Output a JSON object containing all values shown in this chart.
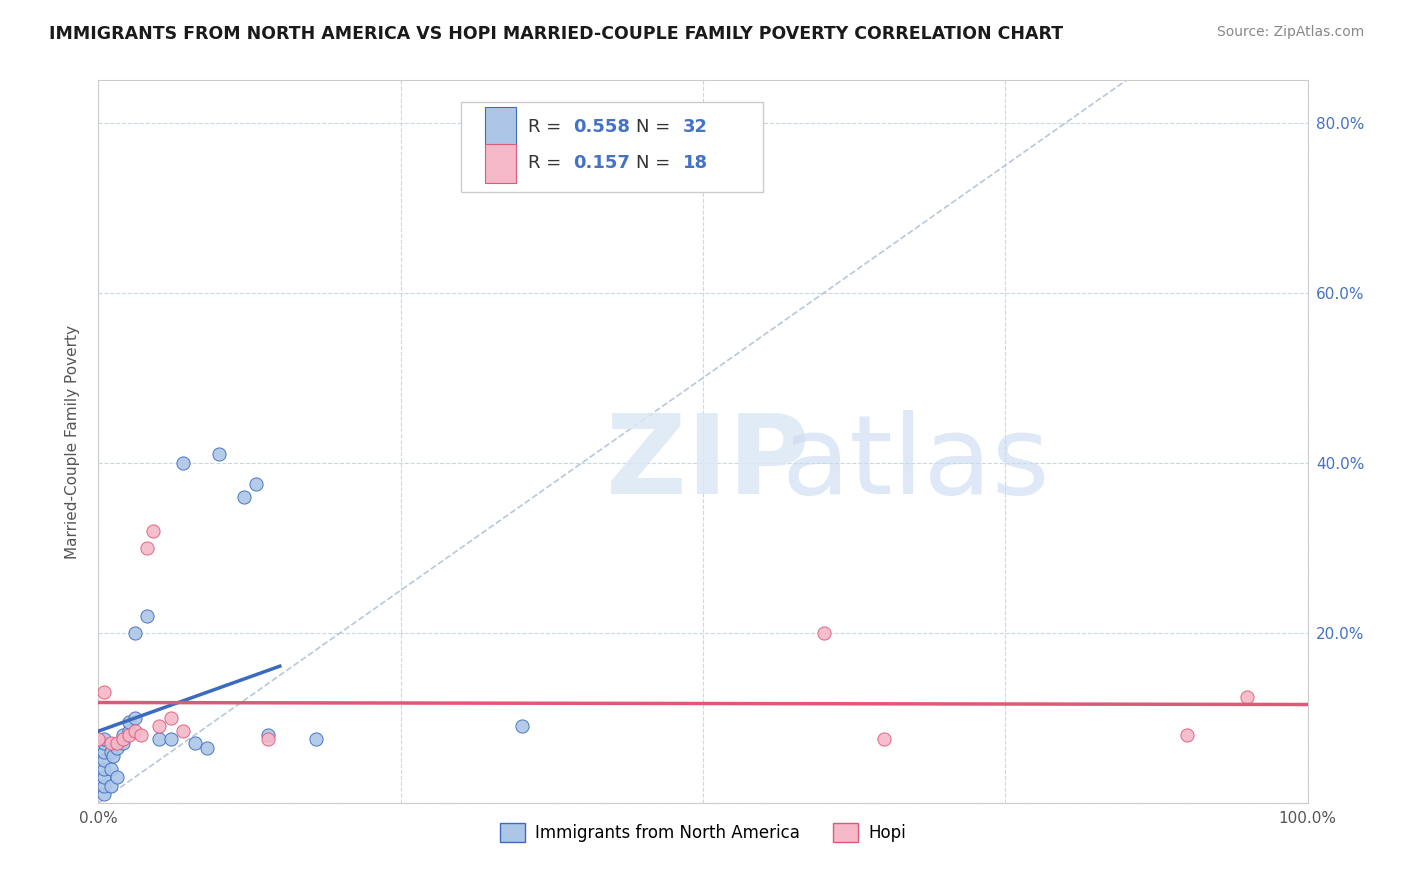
{
  "title": "IMMIGRANTS FROM NORTH AMERICA VS HOPI MARRIED-COUPLE FAMILY POVERTY CORRELATION CHART",
  "source": "Source: ZipAtlas.com",
  "ylabel": "Married-Couple Family Poverty",
  "xlim": [
    0,
    1.0
  ],
  "ylim": [
    0,
    0.85
  ],
  "xticks": [
    0.0,
    0.25,
    0.5,
    0.75,
    1.0
  ],
  "xticklabels": [
    "0.0%",
    "",
    "",
    "",
    "100.0%"
  ],
  "yticks": [
    0.0,
    0.2,
    0.4,
    0.6,
    0.8
  ],
  "yticklabels_right": [
    "",
    "20.0%",
    "40.0%",
    "60.0%",
    "80.0%"
  ],
  "blue_scatter": [
    [
      0.005,
      0.01
    ],
    [
      0.005,
      0.02
    ],
    [
      0.005,
      0.03
    ],
    [
      0.005,
      0.04
    ],
    [
      0.005,
      0.05
    ],
    [
      0.005,
      0.06
    ],
    [
      0.005,
      0.07
    ],
    [
      0.005,
      0.075
    ],
    [
      0.01,
      0.02
    ],
    [
      0.01,
      0.04
    ],
    [
      0.01,
      0.06
    ],
    [
      0.012,
      0.055
    ],
    [
      0.015,
      0.03
    ],
    [
      0.015,
      0.065
    ],
    [
      0.02,
      0.07
    ],
    [
      0.02,
      0.08
    ],
    [
      0.025,
      0.085
    ],
    [
      0.025,
      0.095
    ],
    [
      0.03,
      0.1
    ],
    [
      0.03,
      0.2
    ],
    [
      0.04,
      0.22
    ],
    [
      0.05,
      0.075
    ],
    [
      0.06,
      0.075
    ],
    [
      0.07,
      0.4
    ],
    [
      0.08,
      0.07
    ],
    [
      0.09,
      0.065
    ],
    [
      0.1,
      0.41
    ],
    [
      0.12,
      0.36
    ],
    [
      0.13,
      0.375
    ],
    [
      0.14,
      0.08
    ],
    [
      0.18,
      0.075
    ],
    [
      0.35,
      0.09
    ]
  ],
  "pink_scatter": [
    [
      0.0,
      0.075
    ],
    [
      0.005,
      0.13
    ],
    [
      0.01,
      0.07
    ],
    [
      0.015,
      0.07
    ],
    [
      0.02,
      0.075
    ],
    [
      0.025,
      0.08
    ],
    [
      0.03,
      0.085
    ],
    [
      0.035,
      0.08
    ],
    [
      0.04,
      0.3
    ],
    [
      0.045,
      0.32
    ],
    [
      0.05,
      0.09
    ],
    [
      0.06,
      0.1
    ],
    [
      0.07,
      0.085
    ],
    [
      0.14,
      0.075
    ],
    [
      0.6,
      0.2
    ],
    [
      0.65,
      0.075
    ],
    [
      0.9,
      0.08
    ],
    [
      0.95,
      0.125
    ]
  ],
  "blue_color": "#adc6e8",
  "pink_color": "#f5b8c8",
  "blue_line_color": "#3a6bbf",
  "pink_line_color": "#e05878",
  "diagonal_color": "#b8c8d8",
  "R_blue": 0.558,
  "N_blue": 32,
  "R_pink": 0.157,
  "N_pink": 18,
  "legend_label_blue": "Immigrants from North America",
  "legend_label_pink": "Hopi",
  "background_color": "#ffffff",
  "grid_color": "#c8d8e8",
  "tick_label_color": "#4472c4",
  "label_color": "#555555"
}
